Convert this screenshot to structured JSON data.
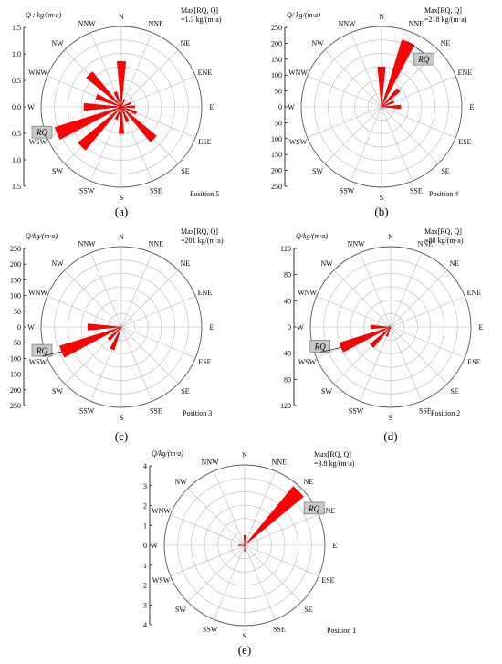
{
  "figure": {
    "direction_labels": [
      "N",
      "NNE",
      "NE",
      "ENE",
      "E",
      "ESE",
      "SE",
      "SSE",
      "S",
      "SSW",
      "SW",
      "WSW",
      "W",
      "WNW",
      "NW",
      "NNW"
    ],
    "rq_tag": "RQ",
    "bar_color": "#ff0000",
    "grid_color": "#bbbbbb"
  },
  "chart_data": [
    {
      "type": "polar-bar",
      "panel_label": "(a)",
      "position_label": "Position 5",
      "axis_label": "Q : kg/(m·a)",
      "max_label": [
        "Max[RQ, Q]",
        "=1.3 kg/(m·a)"
      ],
      "r_ticks": [
        "0.0",
        "0.5",
        "1.0",
        "1.5"
      ],
      "rmax": 1.5,
      "rq_direction": "WSW",
      "rq_arrow": false,
      "values": [
        {
          "dir": "N",
          "value": 0.85
        },
        {
          "dir": "NNE",
          "value": 0.15
        },
        {
          "dir": "ENE",
          "value": 0.2
        },
        {
          "dir": "E",
          "value": 0.25
        },
        {
          "dir": "ESE",
          "value": 0.3
        },
        {
          "dir": "SE",
          "value": 0.85
        },
        {
          "dir": "SSE",
          "value": 0.3
        },
        {
          "dir": "S",
          "value": 0.5
        },
        {
          "dir": "SSW",
          "value": 0.25
        },
        {
          "dir": "SW",
          "value": 1.05
        },
        {
          "dir": "WSW",
          "value": 1.3
        },
        {
          "dir": "W",
          "value": 0.7
        },
        {
          "dir": "WNW",
          "value": 0.5
        },
        {
          "dir": "NW",
          "value": 0.85
        },
        {
          "dir": "NNW",
          "value": 0.3
        }
      ]
    },
    {
      "type": "polar-bar",
      "panel_label": "(b)",
      "position_label": "Position 4",
      "axis_label": "Q/ kg/(m·a)",
      "max_label": [
        "Max[RQ, Q]",
        "=218 kg/(m·a)"
      ],
      "r_ticks": [
        "0",
        "50",
        "100",
        "150",
        "200",
        "250"
      ],
      "rmax": 250,
      "rq_direction": "NNE",
      "rq_arrow": true,
      "values": [
        {
          "dir": "N",
          "value": 125
        },
        {
          "dir": "NNE",
          "value": 218
        },
        {
          "dir": "NE",
          "value": 75
        },
        {
          "dir": "ENE",
          "value": 40
        },
        {
          "dir": "E",
          "value": 60
        }
      ]
    },
    {
      "type": "polar-bar",
      "panel_label": "(c)",
      "position_label": "Position 3",
      "axis_label": "Q/kg/(m·a)",
      "max_label": [
        "Max[RQ, Q]",
        "=201 kg/(m·a)"
      ],
      "r_ticks": [
        "0",
        "50",
        "100",
        "150",
        "200",
        "250"
      ],
      "rmax": 250,
      "rq_direction": "WSW",
      "rq_arrow": true,
      "values": [
        {
          "dir": "W",
          "value": 105
        },
        {
          "dir": "WSW",
          "value": 201
        },
        {
          "dir": "SW",
          "value": 55
        },
        {
          "dir": "SSW",
          "value": 75
        }
      ]
    },
    {
      "type": "polar-bar",
      "panel_label": "(d)",
      "position_label": "Position 2",
      "axis_label": "Q/kg/(m·a)",
      "max_label": [
        "Max[RQ, Q]",
        "=80 kg/(m·a)"
      ],
      "r_ticks": [
        "0",
        "40",
        "80",
        "120"
      ],
      "rmax": 120,
      "rq_direction": "WSW",
      "rq_arrow": true,
      "values": [
        {
          "dir": "W",
          "value": 30
        },
        {
          "dir": "WSW",
          "value": 80
        },
        {
          "dir": "SW",
          "value": 40
        },
        {
          "dir": "SSW",
          "value": 15
        }
      ]
    },
    {
      "type": "polar-bar",
      "panel_label": "(e)",
      "position_label": "Position 1",
      "axis_label": "Q/kg/(m·a)",
      "max_label": [
        "Max[RQ, Q]",
        "=3.8 kg/(m·a)"
      ],
      "r_ticks": [
        "0",
        "1",
        "2",
        "3",
        "4"
      ],
      "rmax": 4,
      "rq_direction": "NE",
      "rq_arrow": false,
      "values": [
        {
          "dir": "N",
          "value": 0.5
        },
        {
          "dir": "NE",
          "value": 3.8
        },
        {
          "dir": "S",
          "value": 0.3
        },
        {
          "dir": "W",
          "value": 0.3
        }
      ]
    }
  ]
}
